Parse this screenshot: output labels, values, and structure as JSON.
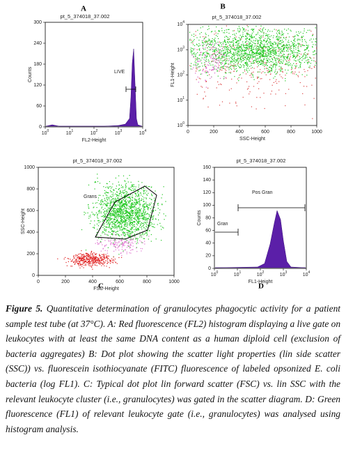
{
  "figure": {
    "panels": [
      {
        "letter": "A",
        "title": "pt_5_374018_37.002",
        "x_label": "FL2-Height",
        "y_label": "Counts",
        "x_ticks": [
          {
            "base": "10",
            "exp": "0"
          },
          {
            "base": "10",
            "exp": "1"
          },
          {
            "base": "10",
            "exp": "2"
          },
          {
            "base": "10",
            "exp": "3"
          },
          {
            "base": "10",
            "exp": "4"
          }
        ],
        "y_ticks": [
          "0",
          "60",
          "120",
          "180",
          "240",
          "300"
        ],
        "annotations": [
          "LIVE"
        ]
      },
      {
        "letter": "B",
        "title": "pt_5_374018_37.002",
        "x_label": "SSC-Height",
        "y_label": "FL1-Height",
        "x_ticks": [
          "0",
          "200",
          "400",
          "600",
          "800",
          "1000"
        ],
        "y_ticks": [
          {
            "base": "10",
            "exp": "0"
          },
          {
            "base": "10",
            "exp": "1"
          },
          {
            "base": "10",
            "exp": "2"
          },
          {
            "base": "10",
            "exp": "3"
          },
          {
            "base": "10",
            "exp": "4"
          }
        ],
        "annotations": []
      },
      {
        "letter": "C",
        "title": "pt_5_374018_37.002",
        "x_label": "FSC-Height",
        "y_label": "SSC-Height",
        "x_ticks": [
          "0",
          "200",
          "400",
          "600",
          "800",
          "1000"
        ],
        "y_ticks": [
          "0",
          "200",
          "400",
          "600",
          "800",
          "1000"
        ],
        "annotations": [
          "Grans"
        ]
      },
      {
        "letter": "D",
        "title": "pt_5_374018_37.002",
        "x_label": "FL1-Height",
        "y_label": "Counts",
        "x_ticks": [
          {
            "base": "10",
            "exp": "0"
          },
          {
            "base": "10",
            "exp": "1"
          },
          {
            "base": "10",
            "exp": "2"
          },
          {
            "base": "10",
            "exp": "3"
          },
          {
            "base": "10",
            "exp": "4"
          }
        ],
        "y_ticks": [
          "0",
          "20",
          "40",
          "60",
          "80",
          "100",
          "120",
          "140",
          "160"
        ],
        "annotations": [
          "Pos Gran",
          "Gran"
        ]
      }
    ],
    "caption": {
      "label": "Figure 5.",
      "text": " Quantitative determination of granulocytes phagocytic activity for a patient sample test tube (at 37°C). A: Red fluorescence (FL2) histogram displaying a live gate on leukocytes with at least the same DNA content as a human diploid cell (exclusion of bacteria aggregates) B: Dot plot showing the scatter light properties (lin side scatter (SSC)) vs. fluorescein isothiocyanate (FITC) fluorescence of labeled opsonized E. coli bacteria (log FL1). C: Typical dot plot lin forward scatter (FSC) vs. lin SSC with the relevant leukocyte cluster (i.e., granulocytes) was gated in the scatter diagram. D: Green fluorescence (FL1) of relevant leukocyte gate (i.e., granulocytes) was analysed using histogram analysis."
    }
  }
}
